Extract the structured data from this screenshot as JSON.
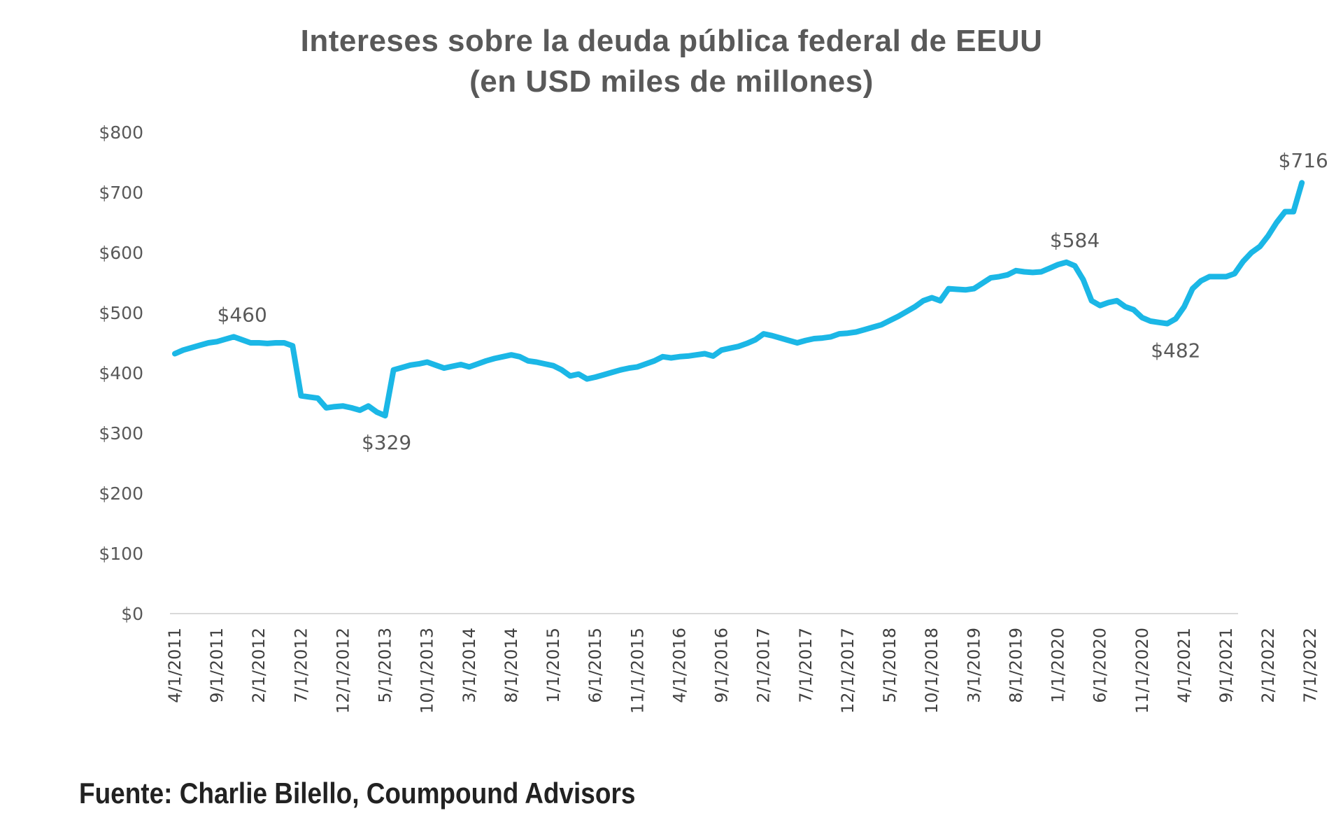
{
  "chart_data": {
    "type": "line",
    "title": "Intereses sobre la deuda pública federal de EEUU",
    "subtitle": "(en USD miles de millones)",
    "xlabel": "",
    "ylabel": "",
    "ylim": [
      0,
      800
    ],
    "grid": false,
    "legend": "none",
    "y_ticks": [
      0,
      100,
      200,
      300,
      400,
      500,
      600,
      700,
      800
    ],
    "y_tick_labels": [
      "$0",
      "$100",
      "$200",
      "$300",
      "$400",
      "$500",
      "$600",
      "$700",
      "$800"
    ],
    "x_tick_labels": [
      "4/1/2011",
      "9/1/2011",
      "2/1/2012",
      "7/1/2012",
      "12/1/2012",
      "5/1/2013",
      "10/1/2013",
      "3/1/2014",
      "8/1/2014",
      "1/1/2015",
      "6/1/2015",
      "11/1/2015",
      "4/1/2016",
      "9/1/2016",
      "2/1/2017",
      "7/1/2017",
      "12/1/2017",
      "5/1/2018",
      "10/1/2018",
      "3/1/2019",
      "8/1/2019",
      "1/1/2020",
      "6/1/2020",
      "11/1/2020",
      "4/1/2021",
      "9/1/2021",
      "2/1/2022",
      "7/1/2022"
    ],
    "series": [
      {
        "name": "Intereses",
        "color": "#1bb7e6",
        "start": "4/1/2011",
        "frequency": "monthly",
        "values": [
          432,
          438,
          442,
          446,
          450,
          452,
          456,
          460,
          455,
          450,
          450,
          449,
          450,
          450,
          445,
          362,
          360,
          358,
          342,
          344,
          345,
          342,
          338,
          345,
          335,
          329,
          405,
          409,
          413,
          415,
          418,
          413,
          408,
          411,
          414,
          410,
          415,
          420,
          424,
          427,
          430,
          427,
          420,
          418,
          415,
          412,
          405,
          395,
          398,
          390,
          393,
          397,
          401,
          405,
          408,
          410,
          415,
          420,
          427,
          425,
          427,
          428,
          430,
          432,
          428,
          438,
          441,
          444,
          449,
          455,
          465,
          462,
          458,
          454,
          450,
          454,
          457,
          458,
          460,
          465,
          466,
          468,
          472,
          476,
          480,
          487,
          494,
          502,
          510,
          520,
          525,
          520,
          540,
          539,
          538,
          540,
          549,
          558,
          560,
          563,
          570,
          568,
          567,
          568,
          574,
          580,
          584,
          578,
          555,
          520,
          512,
          517,
          520,
          510,
          505,
          492,
          486,
          484,
          482,
          490,
          510,
          540,
          553,
          560,
          560,
          560,
          565,
          585,
          600,
          610,
          628,
          650,
          668,
          668,
          716
        ]
      }
    ],
    "annotations": [
      {
        "text": "$460",
        "x": "12/1/2011",
        "y": 460
      },
      {
        "text": "$329",
        "x": "6/1/2013",
        "y": 329
      },
      {
        "text": "$584",
        "x": "3/1/2020",
        "y": 584
      },
      {
        "text": "$482",
        "x": "3/1/2021",
        "y": 482
      },
      {
        "text": "$716",
        "x": "7/1/2022",
        "y": 716
      }
    ]
  },
  "footer": {
    "source": "Fuente: Charlie Bilello, Coumpound Advisors"
  }
}
